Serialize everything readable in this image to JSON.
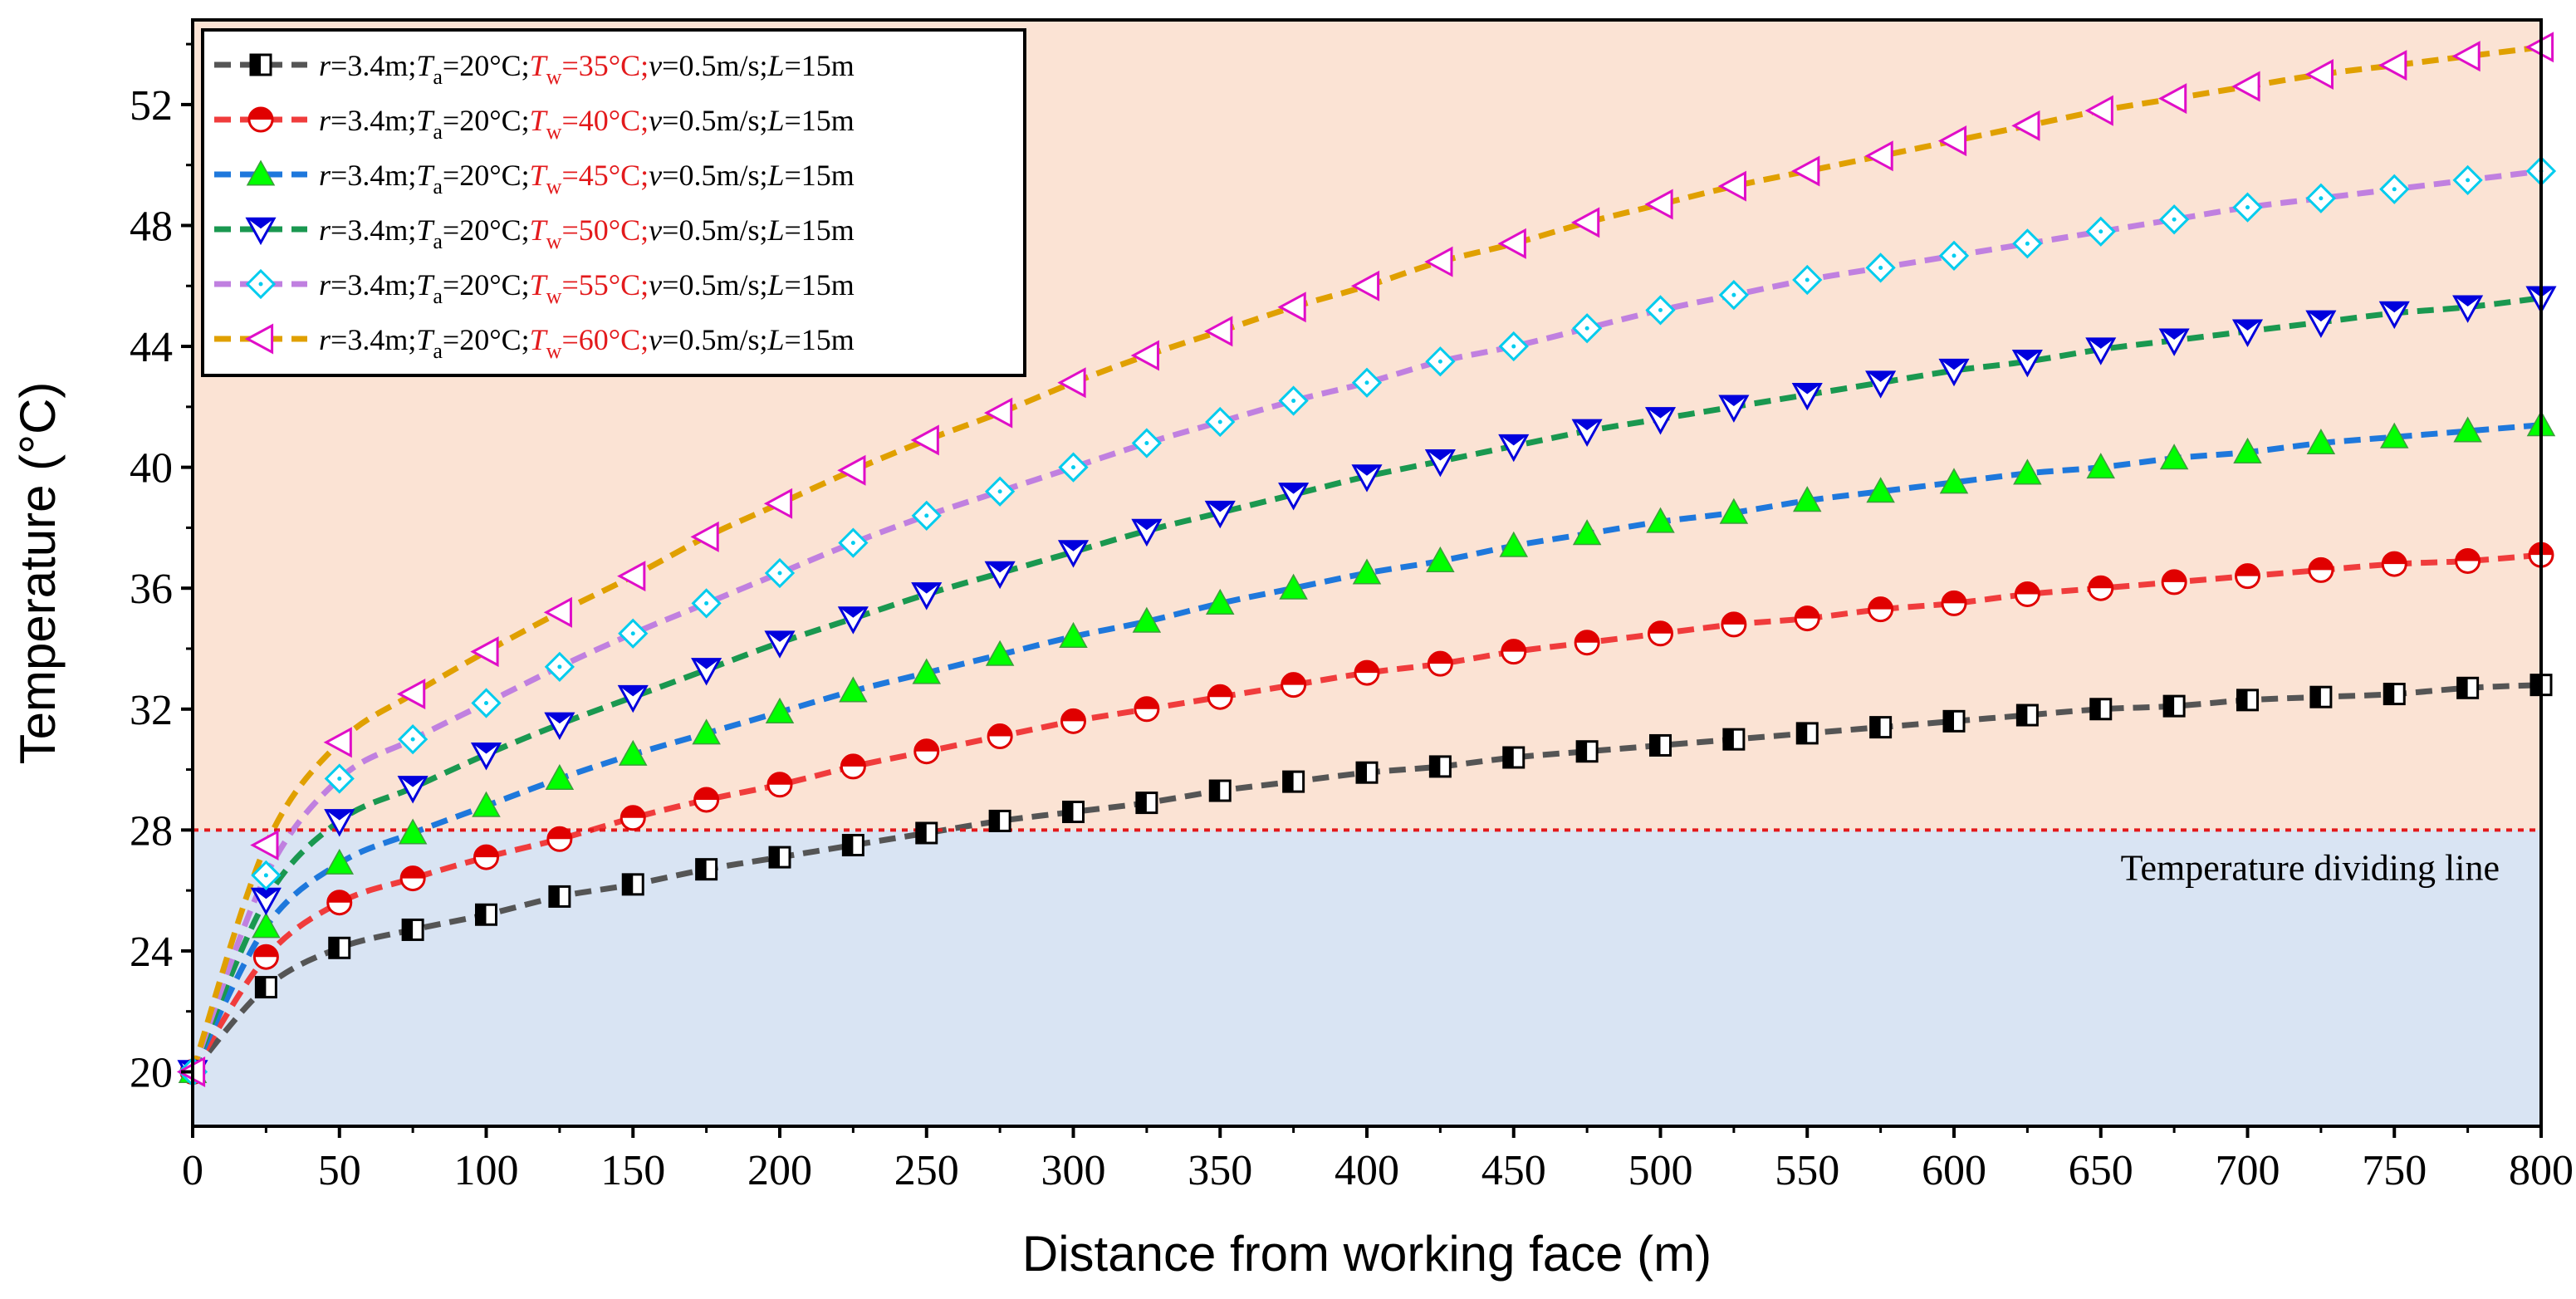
{
  "chart_data": {
    "type": "line",
    "xlabel": "Distance from working face (m)",
    "ylabel": "Temperature (°C)",
    "xlim": [
      0,
      800
    ],
    "ylim": [
      18.2,
      54.8
    ],
    "xticks": [
      0,
      50,
      100,
      150,
      200,
      250,
      300,
      350,
      400,
      450,
      500,
      550,
      600,
      650,
      700,
      750,
      800
    ],
    "yticks": [
      20,
      24,
      28,
      32,
      36,
      40,
      44,
      48,
      52
    ],
    "threshold": {
      "value": 28,
      "label": "Temperature dividing line",
      "color": "#e31a1c"
    },
    "regions": [
      {
        "name": "above-threshold",
        "color": "#fbe3d4"
      },
      {
        "name": "below-threshold",
        "color": "#d9e4f3"
      }
    ],
    "legend_parts": {
      "r_var": "r",
      "r_val": "=3.4m;",
      "ta_var": "T",
      "ta_sub": "a",
      "ta_val": "=20°C;",
      "tw_var": "T",
      "tw_sub": "w",
      "v_var": "v",
      "v_val": "=0.5m/s;",
      "l_var": "L",
      "l_val": "=15m"
    },
    "x": [
      0,
      25,
      50,
      75,
      100,
      125,
      150,
      175,
      200,
      225,
      250,
      275,
      300,
      325,
      350,
      375,
      400,
      425,
      450,
      475,
      500,
      525,
      550,
      575,
      600,
      625,
      650,
      675,
      700,
      725,
      750,
      775,
      800
    ],
    "series": [
      {
        "name": "Tw=35°C",
        "tw_text": "=35°C;",
        "line_color": "#555555",
        "marker": "square-half",
        "marker_color": "#000000",
        "values": [
          20.0,
          22.8,
          24.1,
          24.7,
          25.2,
          25.8,
          26.2,
          26.7,
          27.1,
          27.5,
          27.9,
          28.3,
          28.6,
          28.9,
          29.3,
          29.6,
          29.9,
          30.1,
          30.4,
          30.6,
          30.8,
          31.0,
          31.2,
          31.4,
          31.6,
          31.8,
          32.0,
          32.1,
          32.3,
          32.4,
          32.5,
          32.7,
          32.8
        ]
      },
      {
        "name": "Tw=40°C",
        "tw_text": "=40°C;",
        "line_color": "#f03c3c",
        "marker": "circle-half",
        "marker_color": "#e00000",
        "values": [
          20.0,
          23.8,
          25.6,
          26.4,
          27.1,
          27.7,
          28.4,
          29.0,
          29.5,
          30.1,
          30.6,
          31.1,
          31.6,
          32.0,
          32.4,
          32.8,
          33.2,
          33.5,
          33.9,
          34.2,
          34.5,
          34.8,
          35.0,
          35.3,
          35.5,
          35.8,
          36.0,
          36.2,
          36.4,
          36.6,
          36.8,
          36.9,
          37.1
        ]
      },
      {
        "name": "Tw=45°C",
        "tw_text": "=45°C;",
        "line_color": "#1e78dc",
        "marker": "triangle-up",
        "marker_color": "#00ff00",
        "values": [
          20.0,
          24.8,
          26.9,
          27.9,
          28.8,
          29.7,
          30.5,
          31.2,
          31.9,
          32.6,
          33.2,
          33.8,
          34.4,
          34.9,
          35.5,
          36.0,
          36.5,
          36.9,
          37.4,
          37.8,
          38.2,
          38.5,
          38.9,
          39.2,
          39.5,
          39.8,
          40.0,
          40.3,
          40.5,
          40.8,
          41.0,
          41.2,
          41.4
        ]
      },
      {
        "name": "Tw=50°C",
        "tw_text": "=50°C;",
        "line_color": "#1a9850",
        "marker": "triangle-down",
        "marker_color": "#0000dd",
        "values": [
          20.0,
          25.7,
          28.3,
          29.4,
          30.5,
          31.5,
          32.4,
          33.3,
          34.2,
          35.0,
          35.8,
          36.5,
          37.2,
          37.9,
          38.5,
          39.1,
          39.7,
          40.2,
          40.7,
          41.2,
          41.6,
          42.0,
          42.4,
          42.8,
          43.2,
          43.5,
          43.9,
          44.2,
          44.5,
          44.8,
          45.1,
          45.3,
          45.6
        ]
      },
      {
        "name": "Tw=55°C",
        "tw_text": "=55°C;",
        "line_color": "#c080e0",
        "marker": "diamond",
        "marker_color": "#00ccee",
        "values": [
          20.0,
          26.5,
          29.7,
          31.0,
          32.2,
          33.4,
          34.5,
          35.5,
          36.5,
          37.5,
          38.4,
          39.2,
          40.0,
          40.8,
          41.5,
          42.2,
          42.8,
          43.5,
          44.0,
          44.6,
          45.2,
          45.7,
          46.2,
          46.6,
          47.0,
          47.4,
          47.8,
          48.2,
          48.6,
          48.9,
          49.2,
          49.5,
          49.8
        ]
      },
      {
        "name": "Tw=60°C",
        "tw_text": "=60°C;",
        "line_color": "#e0a000",
        "marker": "triangle-left",
        "marker_color": "#e00ec8",
        "values": [
          20.0,
          27.5,
          30.9,
          32.5,
          33.9,
          35.2,
          36.4,
          37.7,
          38.8,
          39.9,
          40.9,
          41.8,
          42.8,
          43.7,
          44.5,
          45.3,
          46.0,
          46.8,
          47.4,
          48.1,
          48.7,
          49.3,
          49.8,
          50.3,
          50.8,
          51.3,
          51.8,
          52.2,
          52.6,
          53.0,
          53.3,
          53.6,
          53.9
        ]
      }
    ]
  }
}
